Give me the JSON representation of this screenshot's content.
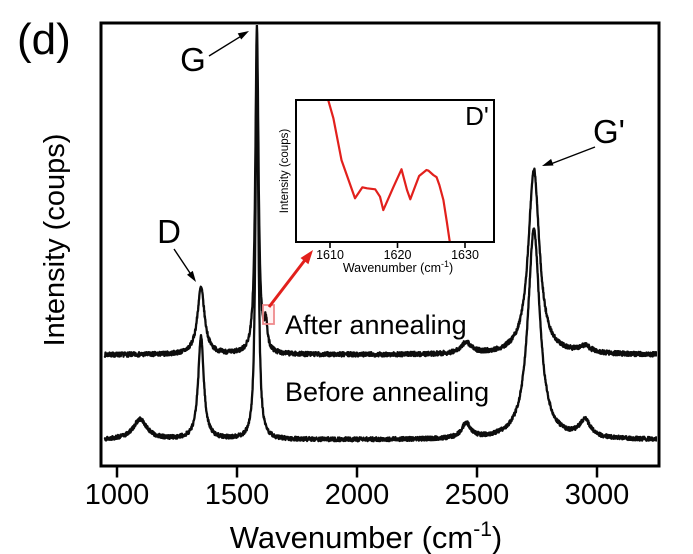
{
  "figure_label": "(d)",
  "colors": {
    "background": "#ffffff",
    "curve_black": "#0d0d0d",
    "inset_curve_red": "#e2201c",
    "pointer_arrow_red": "#e2201c",
    "highlight_box_border": "#ef8a8c",
    "text": "#000000"
  },
  "chart_data": [
    {
      "id": "main",
      "type": "line",
      "title": "",
      "xlabel": "Wavenumber (cm-1)",
      "xlabel_parts": {
        "main": "Wavenumber (cm",
        "sup": "-1",
        "close": ")"
      },
      "ylabel": "Intensity (coups)",
      "xlim": [
        942,
        3262
      ],
      "x_ticks": [
        1000,
        1500,
        2000,
        2500,
        3000
      ],
      "ylim": [
        0,
        1050
      ],
      "y_ticks": "none (arbitrary intensity units)",
      "grid": false,
      "legend": "inline labels next to each curve",
      "series": [
        {
          "name": "After annealing",
          "inline_label": "After annealing",
          "color": "#0d0d0d",
          "baseline_intensity": 252,
          "noise_amplitude": 5,
          "seed": 7,
          "x_start": 950,
          "x_end": 3250,
          "x_step": 1,
          "peaks": [
            {
              "band": "D",
              "center": 1350,
              "amplitude": 150,
              "hwhm": 18
            },
            {
              "band": "G",
              "center": 1583,
              "amplitude": 734,
              "hwhm": 8
            },
            {
              "band": "D'",
              "center": 1620,
              "amplitude": 60,
              "hwhm": 7
            },
            {
              "band": "",
              "center": 2455,
              "amplitude": 25,
              "hwhm": 25
            },
            {
              "band": "G'",
              "center": 2737,
              "amplitude": 415,
              "hwhm": 28
            },
            {
              "band": "",
              "center": 2950,
              "amplitude": 15,
              "hwhm": 30
            }
          ]
        },
        {
          "name": "Before annealing",
          "inline_label": "Before annealing",
          "color": "#0d0d0d",
          "baseline_intensity": 61,
          "noise_amplitude": 4.5,
          "seed": 13,
          "x_start": 950,
          "x_end": 3250,
          "x_step": 1,
          "peaks": [
            {
              "band": "",
              "center": 1096,
              "amplitude": 45,
              "hwhm": 35
            },
            {
              "band": "D",
              "center": 1350,
              "amplitude": 231,
              "hwhm": 14
            },
            {
              "band": "G",
              "center": 1583,
              "amplitude": 887,
              "hwhm": 7
            },
            {
              "band": "",
              "center": 2455,
              "amplitude": 34,
              "hwhm": 22
            },
            {
              "band": "G'",
              "center": 2737,
              "amplitude": 472,
              "hwhm": 30
            },
            {
              "band": "",
              "center": 2950,
              "amplitude": 38,
              "hwhm": 28
            }
          ]
        }
      ],
      "annotations": {
        "d_label": "D",
        "g_label": "G",
        "gprime_label": "G'"
      }
    },
    {
      "id": "inset",
      "type": "line",
      "title": "D'",
      "xlabel": "Wavenumber (cm-1)",
      "xlabel_parts": {
        "main": "Wavenumber (cm",
        "sup": "-1",
        "close": ")"
      },
      "ylabel": "Intensity (coups)",
      "xlim": [
        1605,
        1634.3
      ],
      "x_ticks": [
        1610,
        1620,
        1630
      ],
      "ylim": [
        0,
        100
      ],
      "grid": false,
      "series": [
        {
          "name": "After annealing (D' band zoom)",
          "color": "#e2201c",
          "x": [
            1609.7,
            1610.5,
            1611.7,
            1613.7,
            1614.8,
            1615.5,
            1616.7,
            1617.4,
            1617.9,
            1619.4,
            1620.6,
            1621.4,
            1621.9,
            1622.6,
            1623.2,
            1624.3,
            1624.6,
            1625.3,
            1625.8,
            1626.2,
            1626.8,
            1627.3,
            1627.7,
            1628.0
          ],
          "y": [
            100.5,
            87.1,
            57.7,
            30.8,
            38.5,
            37.8,
            37.1,
            31.9,
            22.5,
            38.9,
            51.2,
            36.6,
            30.1,
            38.9,
            46.5,
            50.7,
            50.2,
            47.2,
            45.6,
            40.1,
            29.6,
            14.3,
            1.4,
            -5.0
          ]
        }
      ]
    }
  ]
}
